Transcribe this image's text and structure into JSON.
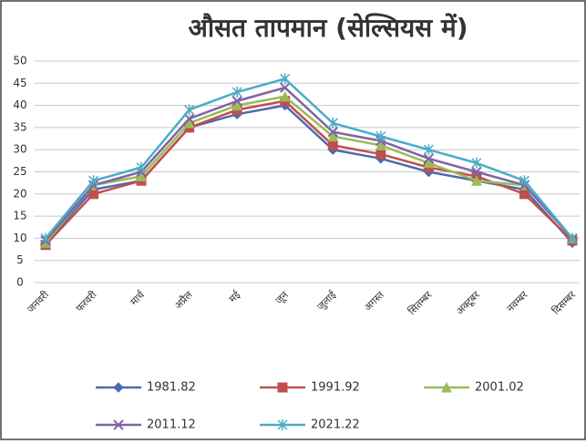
{
  "chart_data": {
    "type": "line",
    "title": "औसत तापमान (सेल्सियस में)",
    "categories": [
      "जनवरी",
      "फरवरी",
      "मार्च",
      "अप्रैल",
      "मई",
      "जून",
      "जुलाई",
      "अगस्त",
      "सितम्बर",
      "अक्टूबर",
      "नवम्बर",
      "दिसम्बर"
    ],
    "series": [
      {
        "name": "1981.82",
        "color": "#4a6cb0",
        "marker": "diamond",
        "values": [
          9,
          21,
          23,
          35,
          38,
          40,
          30,
          28,
          25,
          23,
          21,
          9
        ]
      },
      {
        "name": "1991.92",
        "color": "#c0504d",
        "marker": "square",
        "values": [
          8.5,
          20,
          23,
          35,
          39,
          41,
          31,
          29,
          26,
          24,
          20,
          9.5
        ]
      },
      {
        "name": "2001.02",
        "color": "#9bbb59",
        "marker": "triangle",
        "values": [
          9,
          22,
          24,
          36,
          40,
          42,
          33,
          31,
          27,
          23,
          22,
          10
        ]
      },
      {
        "name": "2011.12",
        "color": "#7f63a6",
        "marker": "x",
        "values": [
          9.5,
          22,
          25,
          37,
          41,
          44,
          34,
          32,
          28,
          25,
          22,
          10
        ]
      },
      {
        "name": "2021.22",
        "color": "#4bacc6",
        "marker": "star",
        "values": [
          10,
          23,
          26,
          39,
          43,
          46,
          36,
          33,
          30,
          27,
          23,
          10
        ]
      }
    ],
    "ylim": [
      0,
      50
    ],
    "yticks": [
      0,
      5,
      10,
      15,
      20,
      25,
      30,
      35,
      40,
      45,
      50
    ],
    "grid": true
  }
}
